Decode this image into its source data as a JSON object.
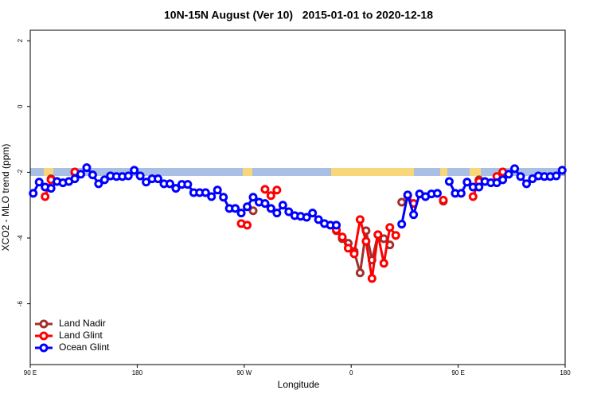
{
  "chart_data": {
    "type": "line",
    "title": "10N-15N August (Ver 10)   2015-01-01 to 2020-12-18",
    "x_label": "Longitude",
    "y_label": "XCO2 - MLO trend (ppm)",
    "xlim": [
      90,
      540
    ],
    "ylim": [
      -7.85,
      2.32
    ],
    "xticks": [
      {
        "value": 90,
        "label": "90 E"
      },
      180,
      {
        "value": 270,
        "label": "90 W"
      },
      {
        "value": 360,
        "label": "0"
      },
      {
        "value": 450,
        "label": "90 E"
      },
      {
        "value": 540,
        "label": "180"
      }
    ],
    "yticks": [
      -6,
      -4,
      -2,
      0,
      2
    ],
    "legend": "bottom-left",
    "x": [
      92.5,
      97.5,
      102.5,
      107.5,
      112.5,
      117.5,
      122.5,
      127.5,
      132.5,
      137.5,
      142.5,
      147.5,
      152.5,
      157.5,
      162.5,
      167.5,
      172.5,
      177.5,
      182.5,
      187.5,
      192.5,
      197.5,
      202.5,
      207.5,
      212.5,
      217.5,
      222.5,
      227.5,
      232.5,
      237.5,
      242.5,
      247.5,
      252.5,
      257.5,
      262.5,
      267.5,
      272.5,
      277.5,
      282.5,
      287.5,
      292.5,
      297.5,
      302.5,
      307.5,
      312.5,
      317.5,
      322.5,
      327.5,
      332.5,
      337.5,
      342.5,
      347.5,
      352.5,
      357.5,
      362.5,
      367.5,
      372.5,
      377.5,
      382.5,
      387.5,
      392.5,
      397.5,
      402.5,
      407.5,
      412.5,
      417.5,
      422.5,
      427.5,
      432.5,
      437.5,
      442.5,
      447.5,
      452.5,
      457.5,
      462.5,
      467.5,
      472.5,
      477.5,
      482.5,
      487.5,
      492.5,
      497.5,
      502.5,
      507.5,
      512.5,
      517.5,
      522.5,
      527.5,
      532.5,
      537.5
    ],
    "series": [
      {
        "name": "Land Nadir",
        "color": "#a0302e",
        "values": [
          null,
          null,
          null,
          -2.2,
          null,
          null,
          null,
          -2.01,
          null,
          null,
          null,
          null,
          null,
          null,
          null,
          null,
          null,
          null,
          null,
          null,
          null,
          null,
          null,
          null,
          null,
          null,
          null,
          null,
          null,
          null,
          null,
          null,
          null,
          null,
          null,
          null,
          null,
          -3.17,
          null,
          null,
          null,
          null,
          null,
          null,
          null,
          null,
          null,
          null,
          null,
          null,
          null,
          -3.78,
          -4.02,
          -4.16,
          -4.41,
          -5.06,
          -3.78,
          -4.67,
          -3.9,
          -4.02,
          -4.21,
          null,
          -2.91,
          null,
          null,
          null,
          null,
          null,
          null,
          -2.88,
          null,
          null,
          null,
          null,
          null,
          -2.23,
          null,
          null,
          null,
          null,
          null,
          null,
          null,
          null,
          null,
          null,
          null,
          null,
          null,
          null
        ]
      },
      {
        "name": "Land Glint",
        "color": "#ff0000",
        "values": [
          null,
          null,
          -2.74,
          -2.23,
          null,
          null,
          null,
          -1.99,
          null,
          null,
          null,
          null,
          null,
          null,
          null,
          null,
          null,
          null,
          null,
          null,
          null,
          null,
          null,
          null,
          null,
          null,
          null,
          null,
          null,
          null,
          null,
          null,
          null,
          null,
          null,
          -3.56,
          -3.61,
          null,
          null,
          -2.52,
          -2.71,
          -2.54,
          null,
          null,
          null,
          null,
          null,
          null,
          null,
          null,
          null,
          -3.75,
          -3.97,
          -4.31,
          -4.48,
          -3.44,
          -4.1,
          -5.23,
          -3.9,
          -4.77,
          -3.68,
          -3.92,
          null,
          -2.71,
          -2.95,
          null,
          null,
          null,
          null,
          -2.85,
          null,
          null,
          null,
          null,
          -2.74,
          -2.28,
          null,
          null,
          -2.13,
          -1.99,
          null,
          null,
          null,
          null,
          null,
          null,
          null,
          null,
          null,
          null
        ]
      },
      {
        "name": "Ocean Glint",
        "color": "#0000ff",
        "values": [
          -2.64,
          -2.3,
          -2.45,
          -2.49,
          -2.28,
          -2.32,
          -2.28,
          -2.2,
          -2.06,
          -1.86,
          -2.08,
          -2.35,
          -2.23,
          -2.11,
          -2.13,
          -2.13,
          -2.11,
          -1.94,
          -2.11,
          -2.3,
          -2.2,
          -2.2,
          -2.35,
          -2.35,
          -2.49,
          -2.37,
          -2.37,
          -2.62,
          -2.62,
          -2.62,
          -2.74,
          -2.54,
          -2.76,
          -3.1,
          -3.1,
          -3.24,
          -3.05,
          -2.76,
          -2.91,
          -2.95,
          -3.1,
          -3.24,
          -3.0,
          -3.2,
          -3.32,
          -3.34,
          -3.37,
          -3.24,
          -3.44,
          -3.56,
          -3.61,
          -3.61,
          null,
          null,
          null,
          null,
          null,
          null,
          null,
          null,
          null,
          null,
          -3.58,
          -2.69,
          -3.29,
          -2.66,
          -2.74,
          -2.66,
          -2.64,
          null,
          -2.28,
          -2.64,
          -2.64,
          -2.3,
          -2.45,
          -2.45,
          -2.28,
          -2.32,
          -2.32,
          -2.23,
          -2.06,
          -1.89,
          -2.13,
          -2.35,
          -2.2,
          -2.11,
          -2.13,
          -2.13,
          -2.11,
          -1.94
        ]
      }
    ]
  }
}
